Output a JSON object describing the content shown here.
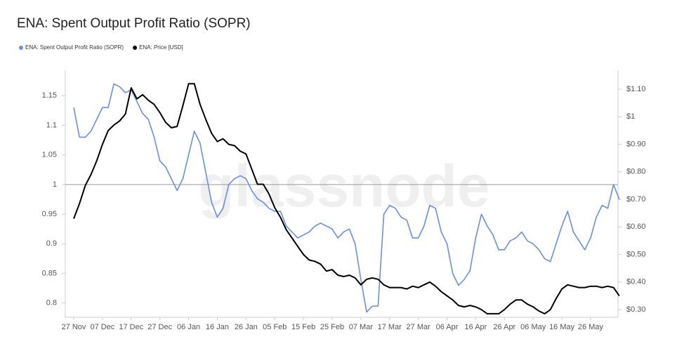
{
  "chart_data": {
    "type": "line",
    "title": "ENA: Spent Output Profit Ratio (SOPR)",
    "watermark": "glassnode",
    "categories": [
      "27 Nov",
      null,
      null,
      null,
      null,
      "07 Dec",
      null,
      null,
      null,
      null,
      "17 Dec",
      null,
      null,
      null,
      null,
      "27 Dec",
      null,
      null,
      null,
      null,
      "06 Jan",
      null,
      null,
      null,
      null,
      "16 Jan",
      null,
      null,
      null,
      null,
      "26 Jan",
      null,
      null,
      null,
      null,
      "05 Feb",
      null,
      null,
      null,
      null,
      "15 Feb",
      null,
      null,
      null,
      null,
      "25 Feb",
      null,
      null,
      null,
      null,
      "07 Mar",
      null,
      null,
      null,
      null,
      "17 Mar",
      null,
      null,
      null,
      null,
      "27 Mar",
      null,
      null,
      null,
      null,
      "06 Apr",
      null,
      null,
      null,
      null,
      "16 Apr",
      null,
      null,
      null,
      null,
      "26 Apr",
      null,
      null,
      null,
      null,
      "06 May",
      null,
      null,
      null,
      null,
      "16 May",
      null,
      null,
      null,
      null,
      "26 May",
      null,
      null,
      null,
      null,
      null
    ],
    "series": [
      {
        "name": "ENA: Spent Output Profit Ratio (SOPR)",
        "color": "#6a8fe0",
        "axis": "y",
        "values": [
          1.13,
          1.08,
          1.08,
          1.09,
          1.11,
          1.13,
          1.13,
          1.17,
          1.165,
          1.155,
          1.16,
          1.14,
          1.12,
          1.11,
          1.08,
          1.04,
          1.03,
          1.01,
          0.99,
          1.01,
          1.05,
          1.09,
          1.07,
          1.02,
          0.97,
          0.945,
          0.96,
          1.0,
          1.01,
          1.015,
          1.01,
          0.99,
          0.976,
          0.97,
          0.96,
          0.955,
          0.955,
          0.93,
          0.92,
          0.91,
          0.915,
          0.92,
          0.93,
          0.935,
          0.93,
          0.925,
          0.91,
          0.92,
          0.925,
          0.9,
          0.84,
          0.785,
          0.795,
          0.795,
          0.95,
          0.965,
          0.96,
          0.945,
          0.94,
          0.91,
          0.91,
          0.93,
          0.965,
          0.96,
          0.92,
          0.9,
          0.85,
          0.83,
          0.84,
          0.855,
          0.91,
          0.95,
          0.93,
          0.915,
          0.89,
          0.89,
          0.905,
          0.91,
          0.92,
          0.905,
          0.9,
          0.89,
          0.875,
          0.87,
          0.9,
          0.93,
          0.955,
          0.92,
          0.905,
          0.89,
          0.91,
          0.945,
          0.965,
          0.96,
          1.0,
          0.975
        ]
      },
      {
        "name": "ENA: Price [USD]",
        "color": "#000000",
        "axis": "y2",
        "values": [
          0.63,
          0.685,
          0.75,
          0.79,
          0.84,
          0.9,
          0.95,
          0.97,
          0.985,
          1.01,
          1.105,
          1.065,
          1.08,
          1.06,
          1.045,
          1.015,
          0.98,
          0.96,
          0.965,
          1.04,
          1.12,
          1.12,
          1.045,
          0.99,
          0.94,
          0.91,
          0.92,
          0.9,
          0.895,
          0.875,
          0.865,
          0.81,
          0.755,
          0.755,
          0.72,
          0.67,
          0.635,
          0.59,
          0.56,
          0.53,
          0.5,
          0.48,
          0.475,
          0.465,
          0.44,
          0.445,
          0.425,
          0.42,
          0.425,
          0.415,
          0.39,
          0.41,
          0.415,
          0.41,
          0.39,
          0.38,
          0.38,
          0.38,
          0.375,
          0.385,
          0.38,
          0.39,
          0.4,
          0.385,
          0.365,
          0.35,
          0.335,
          0.315,
          0.31,
          0.315,
          0.31,
          0.3,
          0.285,
          0.285,
          0.285,
          0.3,
          0.32,
          0.335,
          0.335,
          0.32,
          0.31,
          0.295,
          0.285,
          0.3,
          0.34,
          0.375,
          0.39,
          0.385,
          0.38,
          0.38,
          0.385,
          0.385,
          0.38,
          0.385,
          0.38,
          0.35
        ]
      }
    ],
    "ylim": [
      0.776,
      1.193
    ],
    "yticks": [
      0.8,
      0.85,
      0.9,
      0.95,
      1,
      1.05,
      1.1,
      1.15
    ],
    "y2lim": [
      0.272,
      1.169
    ],
    "y2ticks": [
      {
        "value": 0.3,
        "label": "$0.30"
      },
      {
        "value": 0.4,
        "label": "$0.40"
      },
      {
        "value": 0.5,
        "label": "$0.50"
      },
      {
        "value": 0.6,
        "label": "$0.60"
      },
      {
        "value": 0.7,
        "label": "$0.70"
      },
      {
        "value": 0.8,
        "label": "$0.80"
      },
      {
        "value": 0.9,
        "label": "$0.90"
      },
      {
        "value": 1,
        "label": "$1"
      },
      {
        "value": 1.1,
        "label": "$1.10"
      }
    ],
    "reference_line": 1,
    "grid": false,
    "legend": "top-left"
  }
}
